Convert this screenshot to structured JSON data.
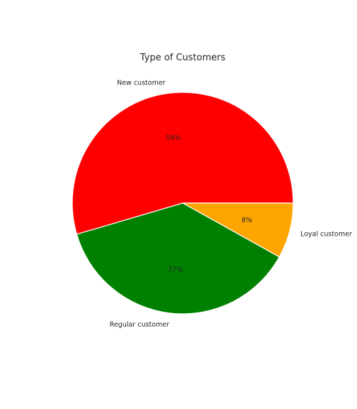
{
  "chart_data": {
    "type": "pie",
    "title": "Type of Customers",
    "labels": [
      "New customer",
      "Regular customer",
      "Loyal customer"
    ],
    "values": [
      54,
      37,
      8
    ],
    "percent_labels": [
      "54%",
      "37%",
      "8%"
    ],
    "colors": [
      "#ff0000",
      "#008000",
      "#ffa500"
    ],
    "start_angle_deg": 0,
    "direction": "counterclockwise",
    "edge_color": "#ffffff"
  }
}
